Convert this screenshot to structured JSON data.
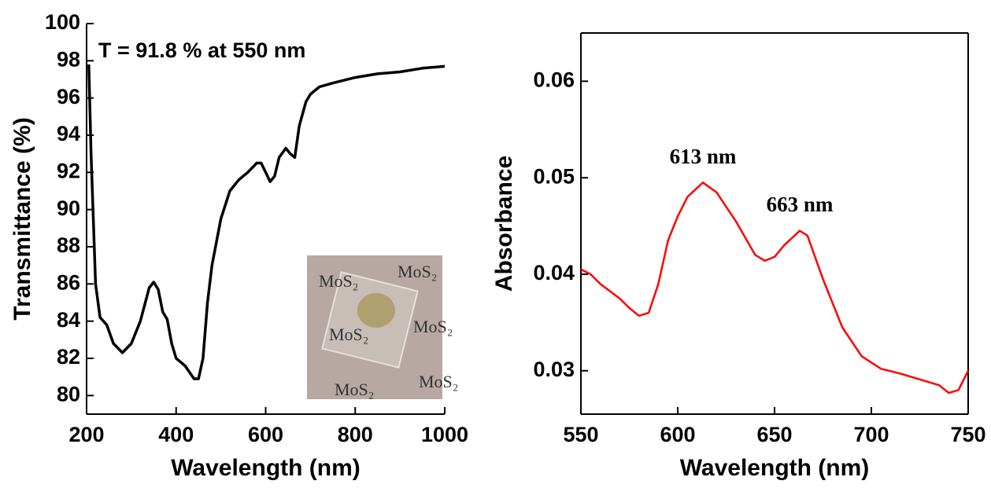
{
  "chart_data": [
    {
      "type": "line",
      "x_label": "Wavelength (nm)",
      "y_label": "Transmittance (%)",
      "annotation": "T = 91.8 % at 550 nm",
      "inset_text": "MoS₂",
      "xlim": [
        200,
        1000
      ],
      "xticks": [
        200,
        400,
        600,
        800,
        1000
      ],
      "ylim": [
        79,
        100
      ],
      "yticks": [
        80,
        82,
        84,
        86,
        88,
        90,
        92,
        94,
        96,
        98,
        100
      ],
      "series": [
        {
          "color": "#000000",
          "x": [
            205,
            210,
            220,
            230,
            245,
            260,
            280,
            300,
            320,
            340,
            350,
            360,
            370,
            380,
            390,
            400,
            420,
            440,
            450,
            460,
            470,
            480,
            500,
            520,
            540,
            560,
            580,
            590,
            600,
            610,
            620,
            630,
            645,
            655,
            665,
            675,
            690,
            700,
            720,
            750,
            800,
            850,
            900,
            950,
            1000
          ],
          "values": [
            97.8,
            93,
            86,
            84.2,
            83.8,
            82.8,
            82.3,
            82.8,
            84,
            85.8,
            86.1,
            85.7,
            84.5,
            84.1,
            82.8,
            82,
            81.6,
            80.9,
            80.9,
            82,
            85,
            87,
            89.5,
            91,
            91.6,
            92,
            92.5,
            92.5,
            92,
            91.5,
            91.8,
            92.8,
            93.3,
            93,
            92.8,
            94.5,
            95.8,
            96.2,
            96.6,
            96.8,
            97.1,
            97.3,
            97.4,
            97.6,
            97.7
          ]
        }
      ]
    },
    {
      "type": "line",
      "x_label": "Wavelength (nm)",
      "y_label": "Absorbance",
      "annotations": [
        {
          "text": "613 nm",
          "x": 613,
          "y": 0.052
        },
        {
          "text": "663 nm",
          "x": 663,
          "y": 0.047
        }
      ],
      "xlim": [
        550,
        750
      ],
      "xticks": [
        550,
        600,
        650,
        700,
        750
      ],
      "ylim": [
        0.0255,
        0.065
      ],
      "yticks": [
        0.03,
        0.04,
        0.05,
        0.06
      ],
      "series": [
        {
          "color": "#ff0000",
          "x": [
            550,
            555,
            560,
            570,
            575,
            580,
            585,
            590,
            595,
            600,
            605,
            613,
            620,
            630,
            640,
            645,
            650,
            655,
            663,
            667,
            675,
            685,
            695,
            705,
            715,
            725,
            735,
            740,
            745,
            750
          ],
          "values": [
            0.0405,
            0.04,
            0.039,
            0.0375,
            0.0365,
            0.0357,
            0.036,
            0.039,
            0.0435,
            0.046,
            0.048,
            0.0495,
            0.0485,
            0.0455,
            0.042,
            0.0414,
            0.0418,
            0.043,
            0.0445,
            0.044,
            0.0395,
            0.0345,
            0.0315,
            0.0302,
            0.0297,
            0.0291,
            0.0285,
            0.0277,
            0.028,
            0.03
          ]
        }
      ]
    }
  ]
}
